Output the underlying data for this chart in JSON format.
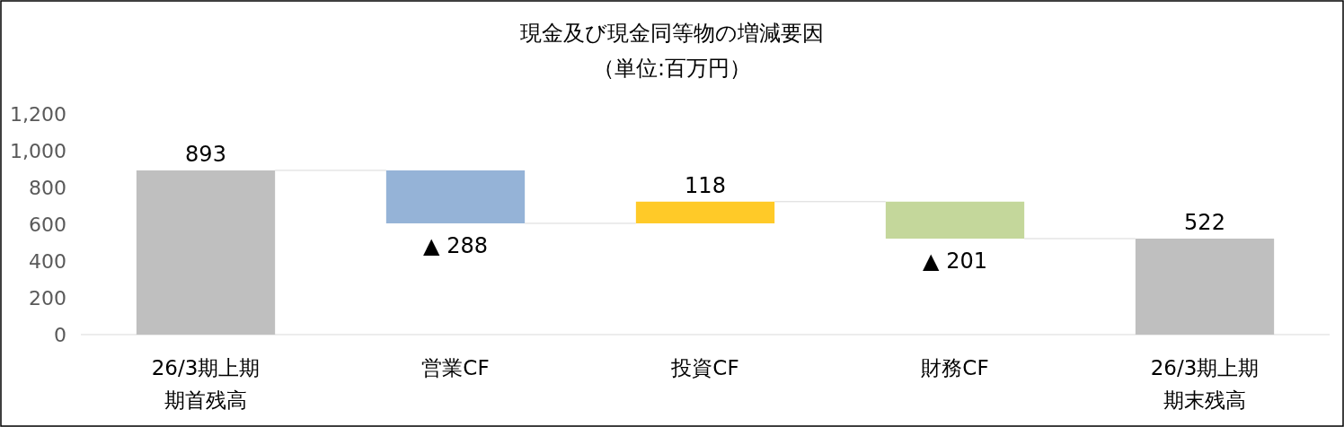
{
  "chart_data": {
    "type": "bar",
    "title": "現金及び現金同等物の増減要因",
    "subtitle": "（単位:百万円）",
    "categories": [
      "26/3期上期期首残高",
      "営業CF",
      "投資CF",
      "財務CF",
      "26/3期上期期末残高"
    ],
    "values": [
      893,
      -288,
      118,
      -201,
      522
    ],
    "base": [
      0,
      893,
      605,
      723,
      0
    ],
    "colors": [
      "#bfbfbf",
      "#95b3d7",
      "#ffca28",
      "#c4d79b",
      "#bfbfbf"
    ],
    "value_labels": [
      "893",
      "▲ 288",
      "118",
      "▲ 201",
      "522"
    ],
    "ylim": [
      0,
      1200
    ],
    "yticks": [
      0,
      200,
      400,
      600,
      800,
      {
        "value": 1000,
        "label": "1,000"
      },
      {
        "value": 1200,
        "label": "1,200"
      }
    ]
  }
}
